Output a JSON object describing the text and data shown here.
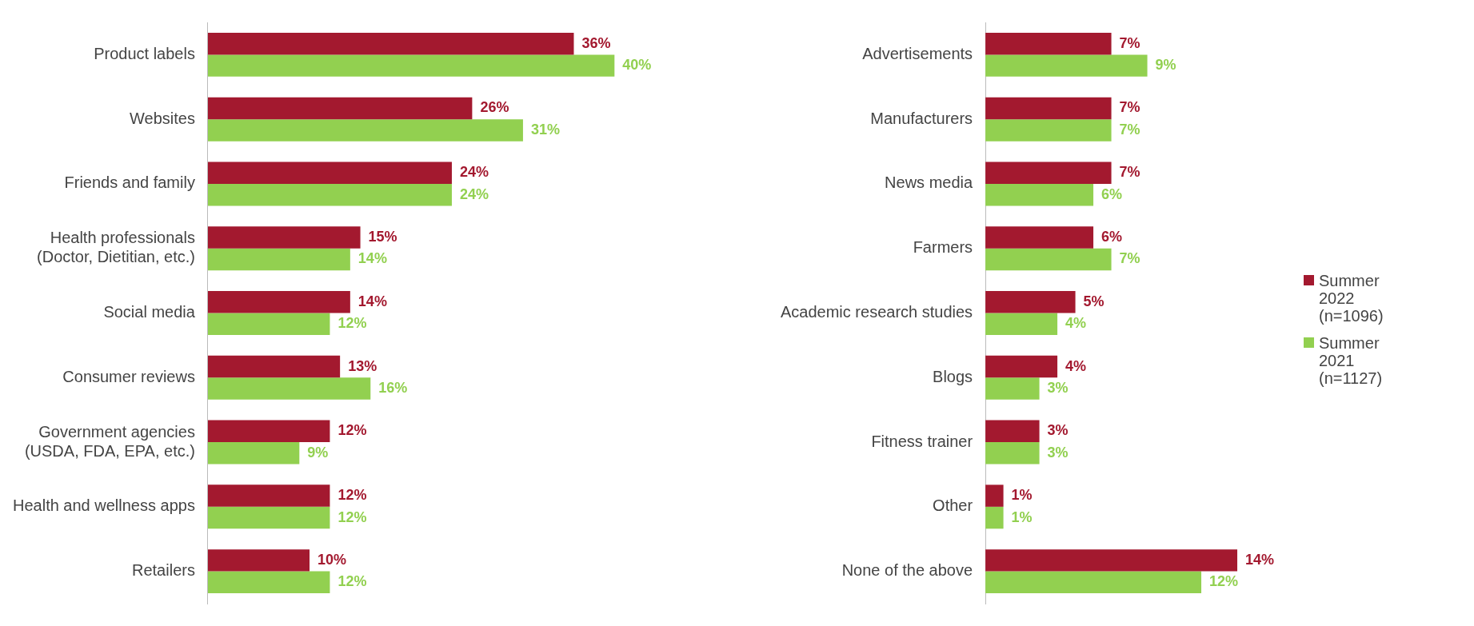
{
  "chart_data": [
    {
      "type": "bar",
      "orientation": "horizontal",
      "categories": [
        "Product labels",
        "Websites",
        "Friends and family",
        "Health professionals\n(Doctor, Dietitian, etc.)",
        "Social media",
        "Consumer reviews",
        "Government agencies\n(USDA, FDA, EPA, etc.)",
        "Health and wellness apps",
        "Retailers"
      ],
      "series": [
        {
          "color": "#a3192f",
          "values": [
            36,
            26,
            24,
            15,
            14,
            13,
            12,
            12,
            10
          ],
          "value_labels": [
            "36%",
            "26%",
            "24%",
            "15%",
            "14%",
            "13%",
            "12%",
            "12%",
            "10%"
          ]
        },
        {
          "color": "#92d050",
          "values": [
            40,
            31,
            24,
            14,
            12,
            16,
            9,
            12,
            12
          ],
          "value_labels": [
            "40%",
            "31%",
            "24%",
            "14%",
            "12%",
            "16%",
            "9%",
            "12%",
            "12%"
          ]
        }
      ],
      "legend": false,
      "grid": false
    },
    {
      "type": "bar",
      "orientation": "horizontal",
      "categories": [
        "Advertisements",
        "Manufacturers",
        "News media",
        "Farmers",
        "Academic research studies",
        "Blogs",
        "Fitness trainer",
        "Other",
        "None of the above"
      ],
      "series": [
        {
          "name": "Summer 2022 (n=1096)",
          "color": "#a3192f",
          "values": [
            7,
            7,
            7,
            6,
            5,
            4,
            3,
            1,
            14
          ],
          "value_labels": [
            "7%",
            "7%",
            "7%",
            "6%",
            "5%",
            "4%",
            "3%",
            "1%",
            "14%"
          ]
        },
        {
          "name": "Summer 2021 (n=1127)",
          "color": "#92d050",
          "values": [
            9,
            7,
            6,
            7,
            4,
            3,
            3,
            1,
            12
          ],
          "value_labels": [
            "9%",
            "7%",
            "6%",
            "7%",
            "4%",
            "3%",
            "3%",
            "1%",
            "12%"
          ]
        }
      ],
      "legend": "right",
      "grid": false
    }
  ]
}
